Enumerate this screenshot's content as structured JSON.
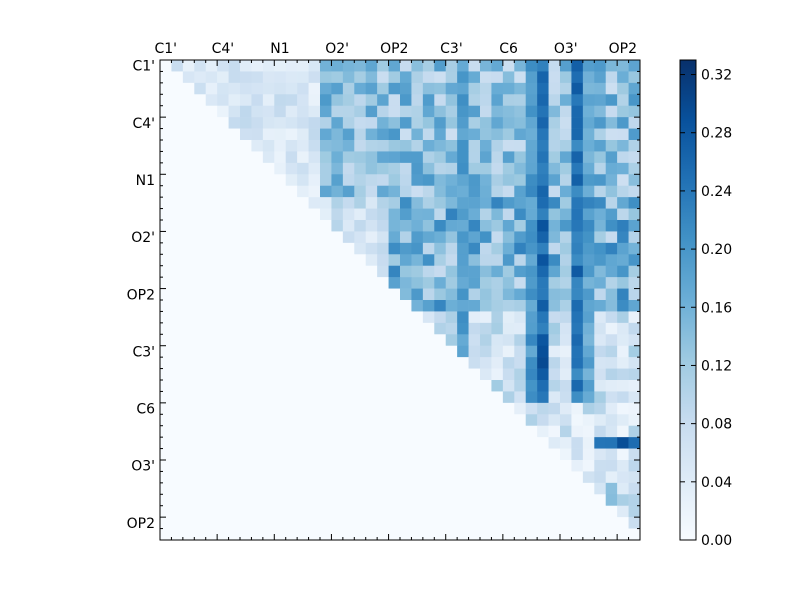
{
  "chart_data": {
    "type": "heatmap",
    "title": "",
    "xlabel": "",
    "ylabel": "",
    "n": 42,
    "major_tick_step": 5,
    "x_tick_labels": [
      "C1'",
      "C4'",
      "N1",
      "O2'",
      "OP2",
      "C3'",
      "C6",
      "O3'",
      "OP2"
    ],
    "y_tick_labels": [
      "C1'",
      "C4'",
      "N1",
      "O2'",
      "OP2",
      "C3'",
      "C6",
      "O3'",
      "OP2"
    ],
    "x_axis_position": "top",
    "colorbar": {
      "colormap": "Blues",
      "range": [
        0.0,
        0.33
      ],
      "ticks": [
        0.0,
        0.04,
        0.08,
        0.12,
        0.16,
        0.2,
        0.24,
        0.28,
        0.32
      ],
      "tick_labels": [
        "0.00",
        "0.04",
        "0.08",
        "0.12",
        "0.16",
        "0.20",
        "0.24",
        "0.28",
        "0.32"
      ],
      "position": "right"
    },
    "strong_columns": [
      {
        "col": 26,
        "value": 0.22
      },
      {
        "col": 32,
        "value": 0.22
      },
      {
        "col": 33,
        "value": 0.3
      },
      {
        "col": 36,
        "value": 0.28
      },
      {
        "col": 37,
        "value": 0.2
      }
    ],
    "notes_visible_pattern": "upper-triangular values; lower triangle near 0"
  }
}
